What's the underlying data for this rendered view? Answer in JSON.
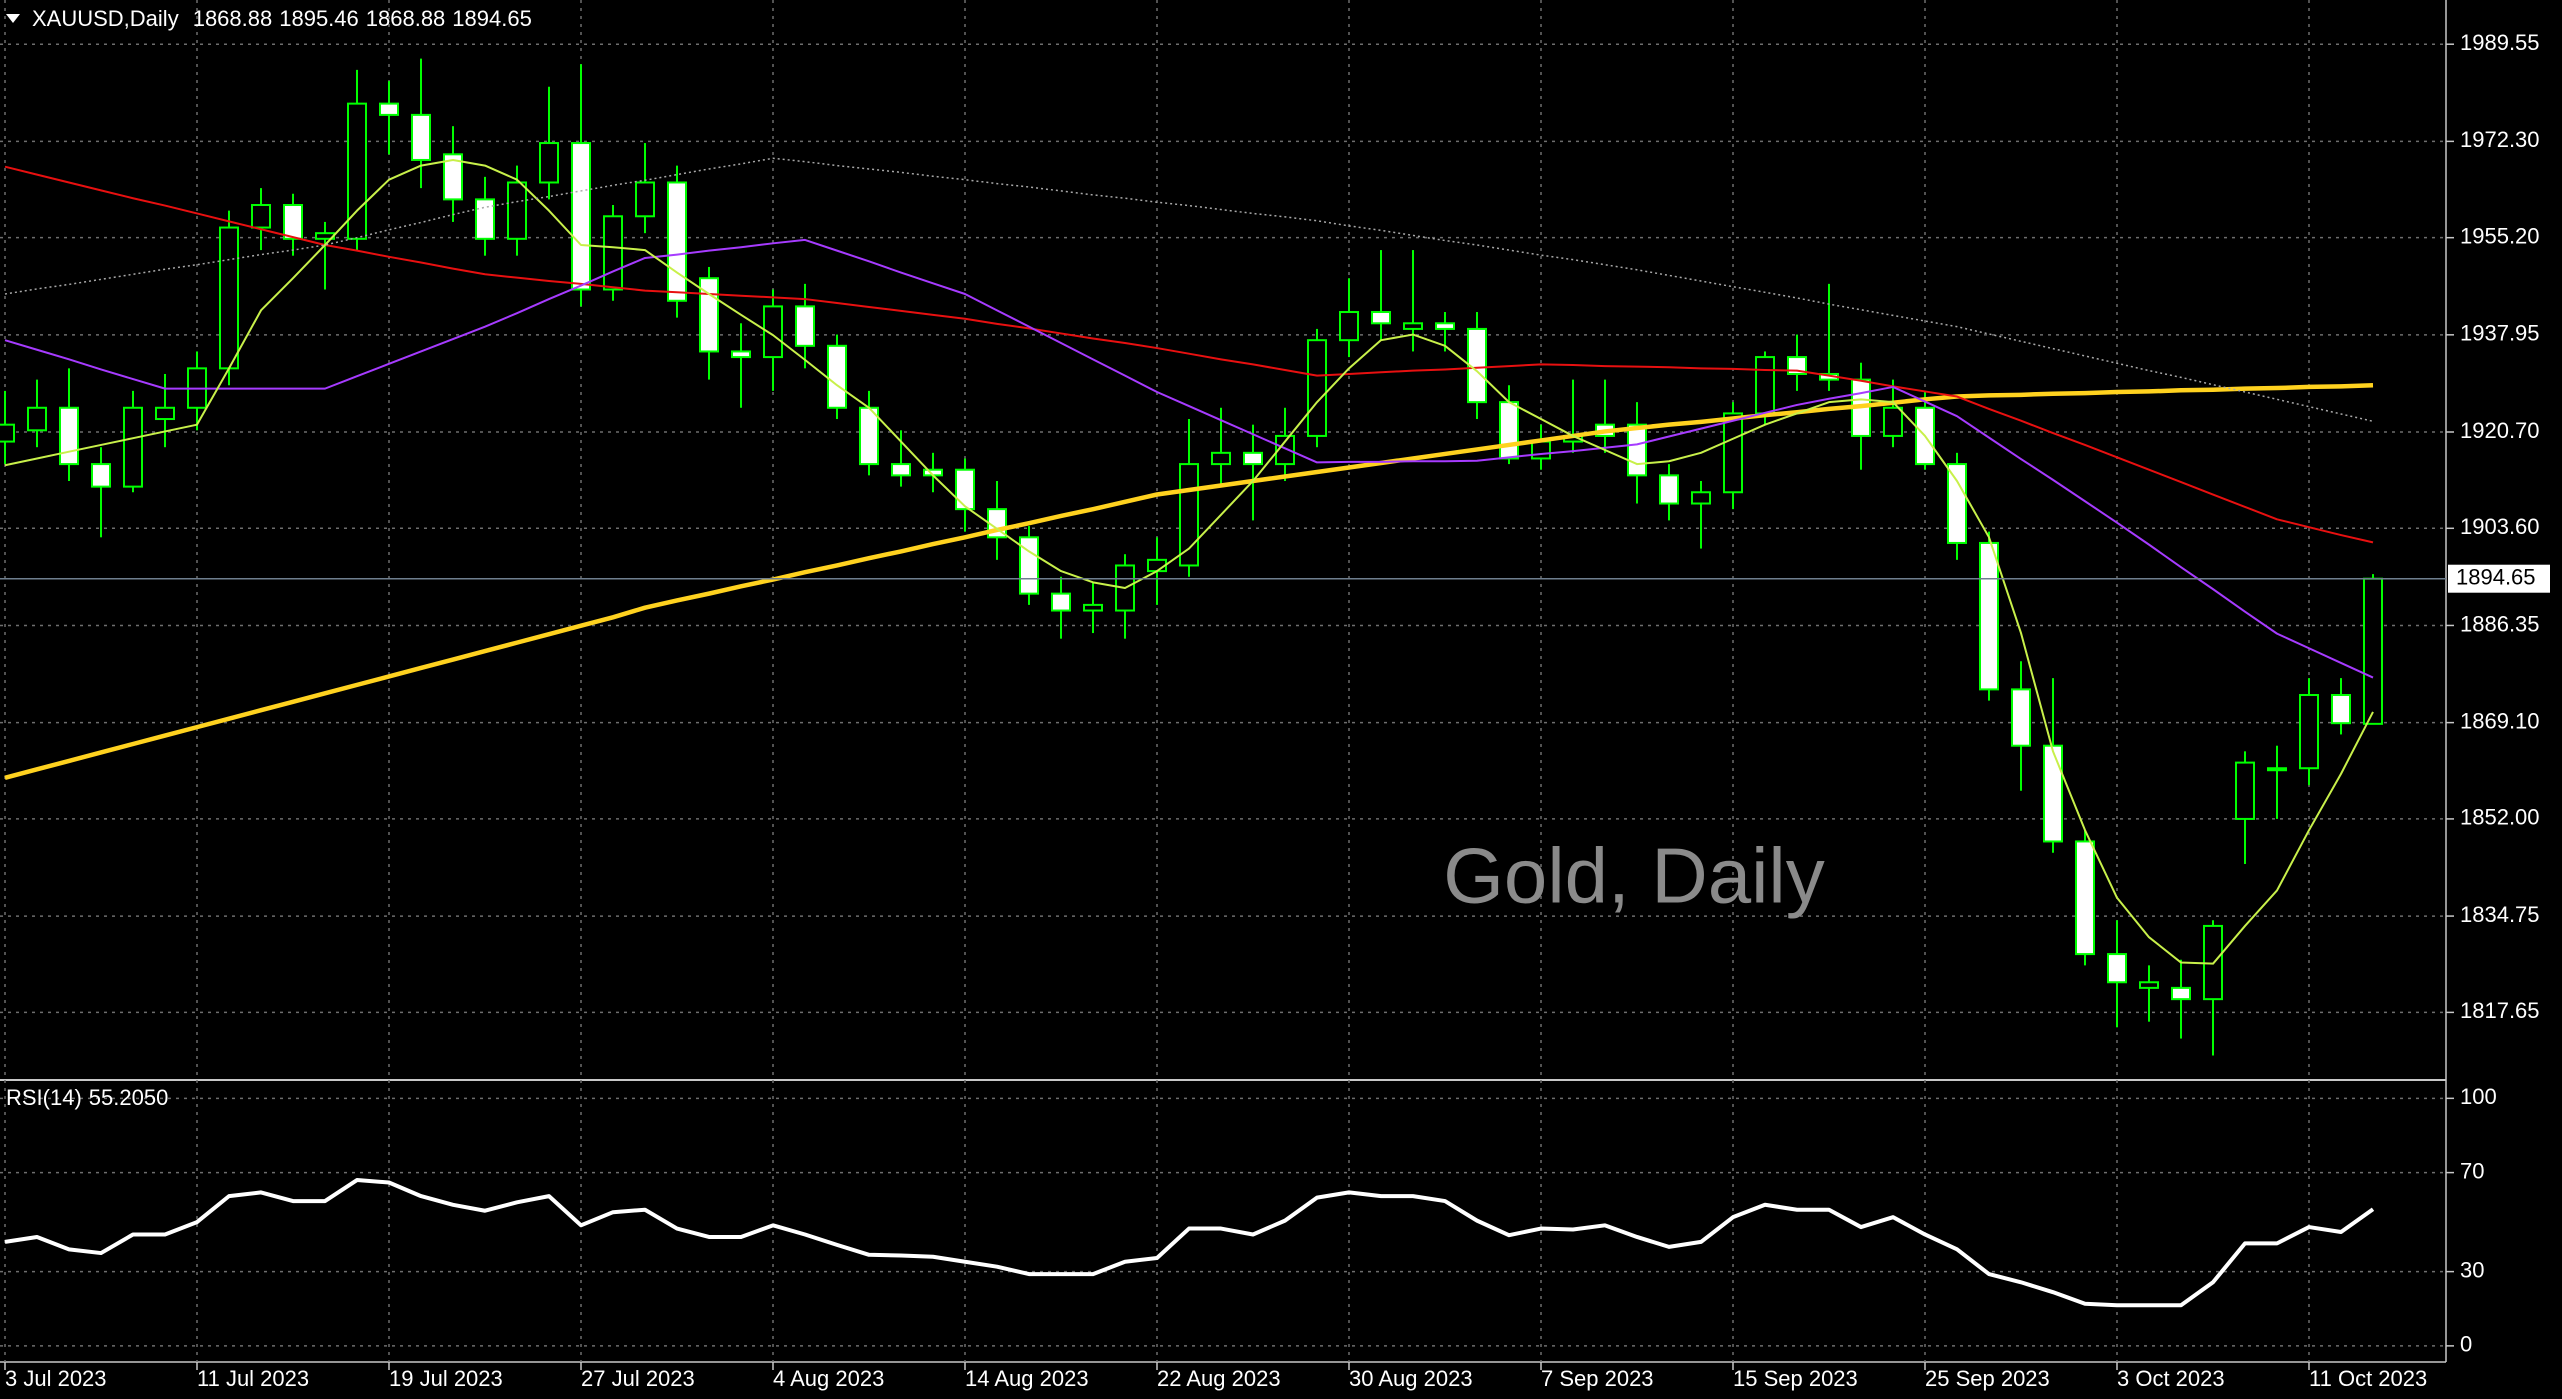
{
  "chart_data": [
    {
      "type": "candlestick",
      "symbol": "XAUUSD,Daily",
      "annotation": "Gold, Daily",
      "categories": [
        "3 Jul 2023",
        null,
        null,
        null,
        null,
        null,
        "11 Jul 2023",
        null,
        null,
        null,
        null,
        null,
        "19 Jul 2023",
        null,
        null,
        null,
        null,
        null,
        "27 Jul 2023",
        null,
        null,
        null,
        null,
        null,
        "4 Aug 2023",
        null,
        null,
        null,
        null,
        null,
        "14 Aug 2023",
        null,
        null,
        null,
        null,
        null,
        "22 Aug 2023",
        null,
        null,
        null,
        null,
        null,
        "30 Aug 2023",
        null,
        null,
        null,
        null,
        null,
        "7 Sep 2023",
        null,
        null,
        null,
        null,
        null,
        "15 Sep 2023",
        null,
        null,
        null,
        null,
        null,
        "25 Sep 2023",
        null,
        null,
        null,
        null,
        null,
        "3 Oct 2023",
        null,
        null,
        null,
        null,
        null,
        "11 Oct 2023",
        null,
        null
      ],
      "open": [
        1919,
        1921,
        1925,
        1915,
        1911,
        1923,
        1925,
        1932,
        1957,
        1961,
        1955,
        1955,
        1979,
        1977,
        1970,
        1962,
        1955,
        1965,
        1972,
        1946,
        1959,
        1965,
        1948,
        1935,
        1934,
        1943,
        1936,
        1925,
        1915,
        1914,
        1914,
        1907,
        1902,
        1892,
        1889,
        1889,
        1896,
        1897,
        1915,
        1917,
        1915,
        1920,
        1937,
        1942,
        1939,
        1940,
        1939,
        1926,
        1916,
        1919,
        1922,
        1922,
        1913,
        1908,
        1910,
        1924,
        1934,
        1931,
        1930,
        1920,
        1925,
        1915,
        1901,
        1875,
        1865,
        1848,
        1828,
        1822,
        1822,
        1820,
        1852,
        1861,
        1861,
        1874,
        1868.88
      ],
      "high": [
        1928,
        1930,
        1932,
        1918,
        1928,
        1931,
        1935,
        1960,
        1964,
        1963,
        1958,
        1985,
        1983,
        1987,
        1975,
        1966,
        1968,
        1982,
        1986,
        1961,
        1972,
        1968,
        1950,
        1940,
        1946,
        1947,
        1938,
        1928,
        1921,
        1917,
        1916,
        1912,
        1904,
        1895,
        1894,
        1899,
        1902,
        1923,
        1925,
        1922,
        1925,
        1939,
        1948,
        1953,
        1953,
        1942,
        1942,
        1929,
        1922,
        1930,
        1930,
        1926,
        1915,
        1912,
        1926,
        1935,
        1938,
        1947,
        1933,
        1930,
        1928,
        1917,
        1903,
        1880,
        1877,
        1850,
        1834,
        1826,
        1827,
        1834,
        1864,
        1865,
        1877,
        1877,
        1895.46
      ],
      "low": [
        1915,
        1918,
        1912,
        1902,
        1910,
        1918,
        1921,
        1929,
        1953,
        1952,
        1946,
        1953,
        1970,
        1964,
        1958,
        1952,
        1952,
        1962,
        1943,
        1944,
        1956,
        1941,
        1930,
        1925,
        1928,
        1932,
        1923,
        1913,
        1911,
        1910,
        1903,
        1898,
        1890,
        1884,
        1885,
        1884,
        1890,
        1895,
        1911,
        1905,
        1912,
        1918,
        1934,
        1937,
        1935,
        1935,
        1923,
        1915,
        1914,
        1917,
        1917,
        1908,
        1905,
        1900,
        1907,
        1922,
        1928,
        1928,
        1914,
        1918,
        1914,
        1898,
        1873,
        1857,
        1846,
        1826,
        1815,
        1816,
        1813,
        1810,
        1844,
        1852,
        1858,
        1867,
        1868.88
      ],
      "close": [
        1922,
        1925,
        1915,
        1911,
        1925,
        1925,
        1932,
        1957,
        1961,
        1955,
        1956,
        1979,
        1977,
        1969,
        1962,
        1955,
        1965,
        1972,
        1946,
        1959,
        1965,
        1944,
        1935,
        1934,
        1943,
        1936,
        1925,
        1915,
        1913,
        1913,
        1907,
        1902,
        1892,
        1889,
        1890,
        1897,
        1898,
        1915,
        1917,
        1915,
        1920,
        1937,
        1942,
        1940,
        1940,
        1939,
        1926,
        1916,
        1919,
        1920,
        1920,
        1913,
        1908,
        1910,
        1924,
        1934,
        1931,
        1930,
        1920,
        1925,
        1915,
        1901,
        1875,
        1865,
        1848,
        1828,
        1823,
        1823,
        1820,
        1833,
        1862,
        1861,
        1874,
        1869,
        1894.65
      ],
      "bull_fill": "#000000",
      "bear_fill": "#ffffff",
      "wick_color": "#00ff00",
      "series": [
        {
          "color": "#ffd21f",
          "style": "thick",
          "values": [
            1859.3,
            1860.8,
            1862.3,
            1863.8,
            1865.3,
            1866.8,
            1868.3,
            1869.8,
            1871.3,
            1872.8,
            1874.3,
            1875.8,
            1877.3,
            1878.8,
            1880.3,
            1881.8,
            1883.3,
            1884.8,
            1886.3,
            1887.8,
            1889.5,
            1890.8,
            1892.0,
            1893.3,
            1894.5,
            1895.8,
            1897.0,
            1898.3,
            1899.5,
            1900.8,
            1902.0,
            1903.3,
            1904.5,
            1905.8,
            1907.0,
            1908.3,
            1909.6,
            1910.4,
            1911.2,
            1912.0,
            1912.8,
            1913.6,
            1914.4,
            1915.2,
            1916.0,
            1916.8,
            1917.6,
            1918.4,
            1919.2,
            1920.0,
            1920.8,
            1921.4,
            1922.0,
            1922.5,
            1923.1,
            1923.7,
            1924.2,
            1924.8,
            1925.3,
            1925.9,
            1926.5,
            1927.0,
            1927.2,
            1927.3,
            1927.5,
            1927.6,
            1927.8,
            1927.9,
            1928.1,
            1928.2,
            1928.4,
            1928.5,
            1928.7,
            1928.8,
            1929.0
          ]
        },
        {
          "color": "#e81010",
          "style": "thin",
          "values": [
            1967.8,
            1966.4,
            1965.0,
            1963.6,
            1962.2,
            1960.9,
            1959.5,
            1958.1,
            1956.7,
            1955.3,
            1953.9,
            1952.9,
            1951.8,
            1950.8,
            1949.7,
            1948.7,
            1948.1,
            1947.5,
            1947.0,
            1946.4,
            1945.8,
            1945.5,
            1945.2,
            1944.9,
            1944.6,
            1944.3,
            1943.6,
            1942.9,
            1942.2,
            1941.5,
            1940.8,
            1939.9,
            1939.1,
            1938.2,
            1937.3,
            1936.5,
            1935.6,
            1934.6,
            1933.6,
            1932.7,
            1931.7,
            1930.7,
            1931.0,
            1931.3,
            1931.6,
            1931.8,
            1932.1,
            1932.4,
            1932.7,
            1932.6,
            1932.4,
            1932.3,
            1932.2,
            1932.0,
            1931.9,
            1931.7,
            1931.6,
            1930.7,
            1929.8,
            1928.8,
            1927.9,
            1927.0,
            1924.8,
            1922.7,
            1920.5,
            1918.4,
            1916.2,
            1914.0,
            1911.8,
            1909.6,
            1907.4,
            1905.2,
            1903.8,
            1902.4,
            1901.1
          ]
        },
        {
          "color": "#a63bff",
          "style": "thin",
          "values": [
            1937,
            1935.3,
            1933.6,
            1931.8,
            1930.1,
            1928.4,
            1928.4,
            1928.4,
            1928.4,
            1928.4,
            1928.4,
            1930.6,
            1932.8,
            1935.0,
            1937.2,
            1939.4,
            1941.8,
            1944.3,
            1946.7,
            1949.2,
            1951.6,
            1952.2,
            1952.9,
            1953.5,
            1954.2,
            1954.8,
            1952.9,
            1951.0,
            1949.0,
            1947.1,
            1945.2,
            1942.3,
            1939.4,
            1936.5,
            1933.6,
            1930.7,
            1927.8,
            1925.3,
            1922.8,
            1920.3,
            1917.8,
            1915.3,
            1915.4,
            1915.4,
            1915.5,
            1915.5,
            1915.6,
            1916.2,
            1916.8,
            1917.3,
            1917.9,
            1918.5,
            1919.9,
            1921.3,
            1922.7,
            1924.1,
            1925.5,
            1926.6,
            1927.6,
            1928.7,
            1926.1,
            1923.5,
            1919.7,
            1915.9,
            1912.2,
            1908.4,
            1904.6,
            1900.7,
            1896.7,
            1892.8,
            1888.8,
            1884.9,
            1882.3,
            1879.7,
            1877.1
          ]
        },
        {
          "color": "#c8f04a",
          "style": "thin",
          "values": [
            1914.8,
            1916,
            1917.2,
            1918.4,
            1919.6,
            1920.8,
            1922,
            1932,
            1942.3,
            1948,
            1953.9,
            1960,
            1965.5,
            1968,
            1969,
            1968,
            1965.5,
            1960,
            1953.9,
            1953.5,
            1953,
            1949,
            1945.2,
            1941.5,
            1937.9,
            1933.5,
            1929,
            1925,
            1919,
            1913,
            1907.5,
            1903.5,
            1899.5,
            1896,
            1894,
            1893,
            1896,
            1900,
            1906,
            1912,
            1919,
            1926,
            1932,
            1937,
            1938,
            1936,
            1931.5,
            1926,
            1923,
            1920,
            1917.5,
            1915,
            1915.5,
            1917,
            1919.5,
            1922,
            1924,
            1926,
            1926.5,
            1926,
            1920,
            1912,
            1902,
            1885,
            1864,
            1850,
            1838,
            1831,
            1826.5,
            1826.3,
            1833,
            1839.3,
            1850,
            1860,
            1871
          ]
        },
        {
          "color": "#a8a8a8",
          "style": "dotted",
          "values": [
            1945.2,
            1946.1,
            1946.9,
            1947.8,
            1948.7,
            1949.6,
            1950.4,
            1951.3,
            1952.2,
            1953.0,
            1953.9,
            1955.2,
            1956.6,
            1957.9,
            1959.3,
            1960.6,
            1961.6,
            1962.5,
            1963.5,
            1964.5,
            1965.4,
            1966.4,
            1967.4,
            1968.3,
            1969.3,
            1968.7,
            1968.0,
            1967.4,
            1966.8,
            1966.1,
            1965.5,
            1964.8,
            1964.2,
            1963.5,
            1962.8,
            1962.2,
            1961.5,
            1960.9,
            1960.2,
            1959.5,
            1958.9,
            1958.2,
            1957.3,
            1956.5,
            1955.6,
            1954.7,
            1953.9,
            1953.0,
            1952.1,
            1951.3,
            1950.4,
            1949.5,
            1948.5,
            1947.5,
            1946.5,
            1945.5,
            1944.5,
            1943.4,
            1942.4,
            1941.4,
            1940.4,
            1939.4,
            1938.1,
            1936.8,
            1935.5,
            1934.2,
            1932.9,
            1931.6,
            1930.4,
            1929.1,
            1927.8,
            1926.5,
            1925.2,
            1923.9,
            1922.6
          ]
        }
      ],
      "ylim": [
        1806.0,
        1997.4
      ],
      "yticks": [
        1989.55,
        {
          "value": 1972.3,
          "label": "1972.30"
        },
        {
          "value": 1955.2,
          "label": "1955.20"
        },
        1937.95,
        {
          "value": 1920.7,
          "label": "1920.70"
        },
        {
          "value": 1903.6,
          "label": "1903.60"
        },
        1886.35,
        {
          "value": 1869.1,
          "label": "1869.10"
        },
        {
          "value": 1852,
          "label": "1852.00"
        },
        1834.75,
        1817.65
      ],
      "grid": true
    },
    {
      "type": "line",
      "name": "RSI(14)",
      "current_label": "55.2050",
      "color": "#ffffff",
      "values": [
        42,
        44,
        39,
        37.5,
        45,
        45,
        50,
        60.5,
        62,
        58.5,
        58.5,
        67,
        66,
        60.5,
        57,
        54.6,
        58,
        60.5,
        48.7,
        54,
        55,
        47.4,
        44,
        44,
        48.7,
        45,
        40.8,
        36.8,
        36.5,
        36,
        34,
        32,
        29,
        29,
        29,
        34,
        35.5,
        47.4,
        47.4,
        45,
        50.6,
        59.9,
        62,
        60.5,
        60.5,
        58.5,
        50.6,
        44.7,
        47.4,
        47,
        48.7,
        44,
        40,
        42,
        52,
        57,
        55,
        55,
        48,
        52,
        45,
        39,
        29,
        25.7,
        21.7,
        17,
        16.4,
        16.4,
        16.4,
        25.7,
        41.4,
        41.4,
        48,
        46,
        55.205
      ],
      "ylim": [
        -5.3,
        106.6
      ],
      "yticks": [
        0,
        30,
        70,
        100
      ],
      "grid": true
    }
  ]
}
